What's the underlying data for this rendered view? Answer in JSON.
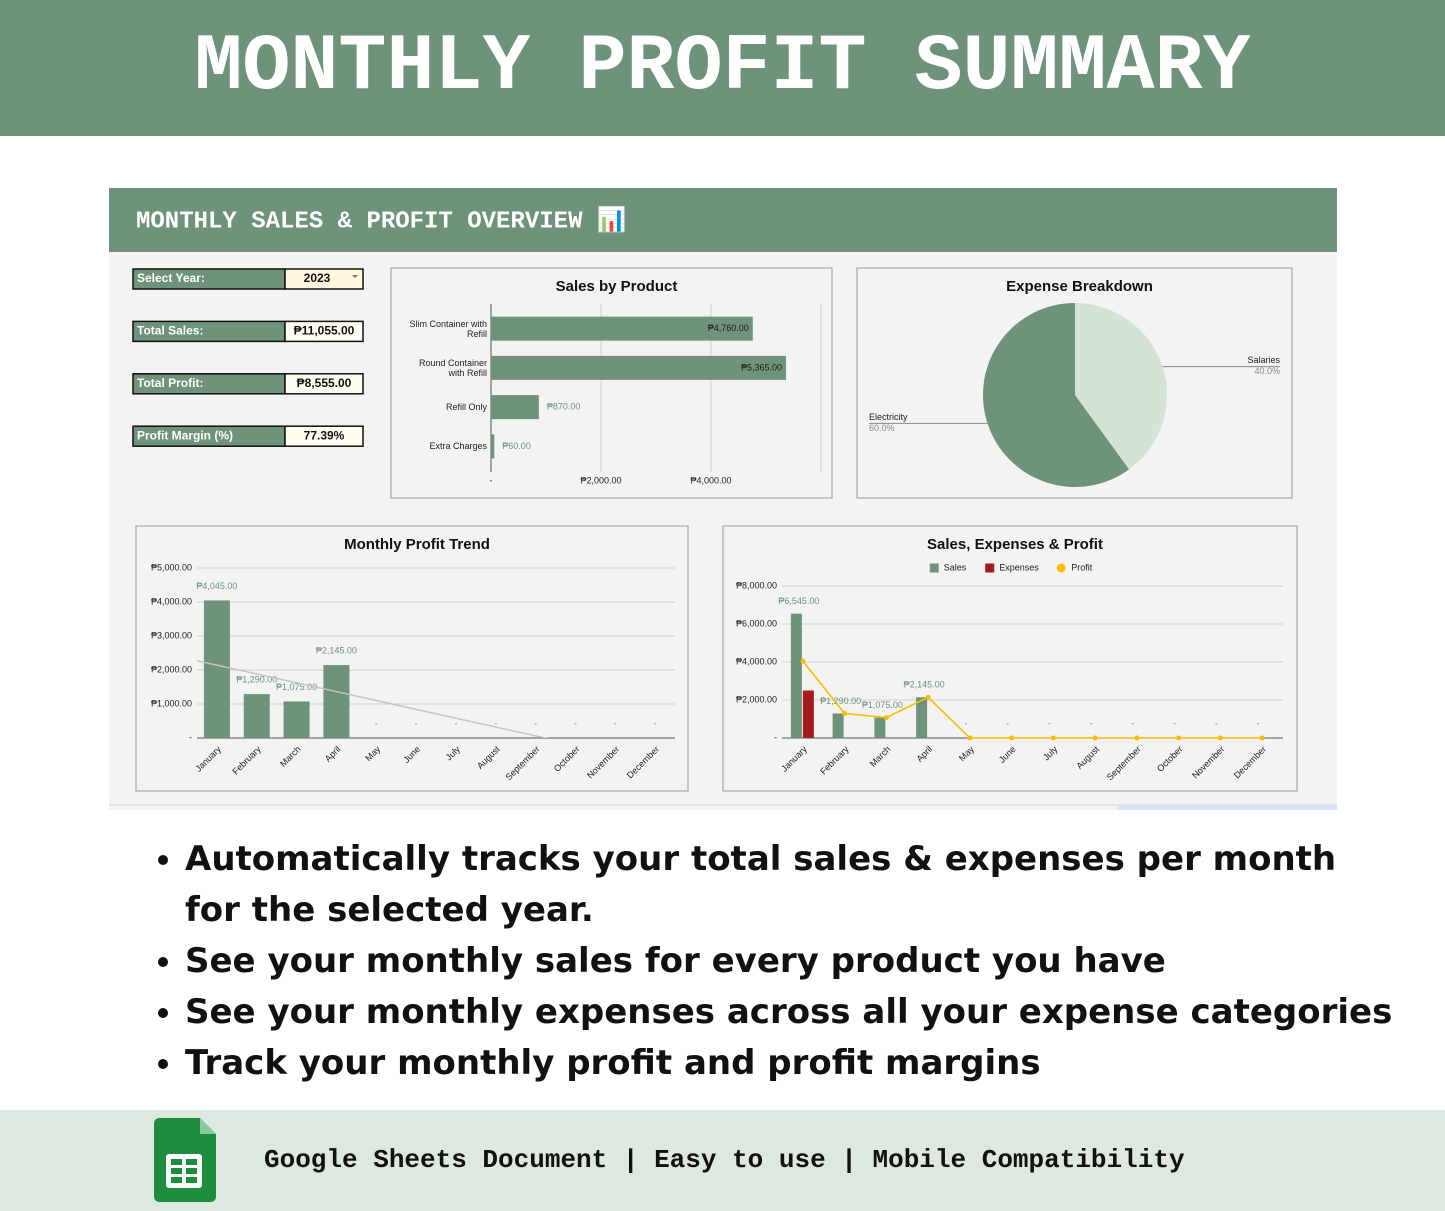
{
  "header": {
    "title": "MONTHLY PROFIT SUMMARY"
  },
  "dashboard": {
    "title": "MONTHLY SALES & PROFIT OVERVIEW 📊",
    "fields": [
      {
        "label": "Select Year:",
        "value": "2023"
      },
      {
        "label": "Total Sales:",
        "value": "₱11,055.00"
      },
      {
        "label": "Total Profit:",
        "value": "₱8,555.00"
      },
      {
        "label": "Profit Margin (%)",
        "value": "77.39%"
      }
    ]
  },
  "chart_data": [
    {
      "type": "bar",
      "horizontal": true,
      "title": "Sales by Product",
      "categories": [
        "Slim Container with Refill",
        "Round Container with Refill",
        "Refill Only",
        "Extra Charges"
      ],
      "values": [
        4760,
        5365,
        870,
        60
      ],
      "value_labels": [
        "₱4,760.00",
        "₱5,365.00",
        "₱870.00",
        "₱60.00"
      ],
      "color": "#6e937a",
      "xlim": [
        0,
        6000
      ],
      "xticks": [
        {
          "value": 0,
          "label": "-"
        },
        {
          "value": 2000,
          "label": "₱2,000.00"
        },
        {
          "value": 4000,
          "label": "₱4,000.00"
        }
      ],
      "grid": true
    },
    {
      "type": "pie",
      "title": "Expense Breakdown",
      "categories": [
        "Salaries",
        "Electricity"
      ],
      "values": [
        40,
        60
      ],
      "value_labels": [
        "40.0%",
        "60.0%"
      ],
      "colors": [
        "#d4e3d6",
        "#6e937a"
      ]
    },
    {
      "type": "bar",
      "title": "Monthly Profit Trend",
      "categories": [
        "January",
        "February",
        "March",
        "April",
        "May",
        "June",
        "July",
        "August",
        "September",
        "October",
        "November",
        "December"
      ],
      "values": [
        4045,
        1290,
        1075,
        2145,
        0,
        0,
        0,
        0,
        0,
        0,
        0,
        0
      ],
      "value_labels": [
        "₱4,045.00",
        "₱1,290.00",
        "₱1,075.00",
        "₱2,145.00",
        "-",
        "-",
        "-",
        "-",
        "-",
        "-",
        "-",
        "-"
      ],
      "color": "#6e937a",
      "ylim": [
        0,
        5000
      ],
      "yticks": [
        {
          "value": 0,
          "label": "-"
        },
        {
          "value": 1000,
          "label": "₱1,000.00"
        },
        {
          "value": 2000,
          "label": "₱2,000.00"
        },
        {
          "value": 3000,
          "label": "₱3,000.00"
        },
        {
          "value": 4000,
          "label": "₱4,000.00"
        },
        {
          "value": 5000,
          "label": "₱5,000.00"
        }
      ],
      "grid": true,
      "trendline": true
    },
    {
      "type": "combo",
      "title": "Sales, Expenses & Profit",
      "categories": [
        "January",
        "February",
        "March",
        "April",
        "May",
        "June",
        "July",
        "August",
        "September",
        "October",
        "November",
        "December"
      ],
      "series": [
        {
          "name": "Sales",
          "kind": "bar",
          "color": "#6e937a",
          "values": [
            6545,
            1290,
            1075,
            2145,
            0,
            0,
            0,
            0,
            0,
            0,
            0,
            0
          ],
          "value_labels": [
            "₱6,545.00",
            "₱1,290.00",
            "₱1,075.00",
            "₱2,145.00",
            "-",
            "-",
            "-",
            "-",
            "-",
            "-",
            "-",
            "-"
          ]
        },
        {
          "name": "Expenses",
          "kind": "bar",
          "color": "#a61c1c",
          "values": [
            2500,
            0,
            0,
            0,
            0,
            0,
            0,
            0,
            0,
            0,
            0,
            0
          ]
        },
        {
          "name": "Profit",
          "kind": "line",
          "color": "#fbbc04",
          "values": [
            4045,
            1290,
            1075,
            2145,
            0,
            0,
            0,
            0,
            0,
            0,
            0,
            0
          ]
        }
      ],
      "ylim": [
        0,
        8000
      ],
      "yticks": [
        {
          "value": 0,
          "label": "-"
        },
        {
          "value": 2000,
          "label": "₱2,000.00"
        },
        {
          "value": 4000,
          "label": "₱4,000.00"
        },
        {
          "value": 6000,
          "label": "₱6,000.00"
        },
        {
          "value": 8000,
          "label": "₱8,000.00"
        }
      ],
      "grid": true,
      "legend": "top"
    }
  ],
  "bullets": [
    "Automatically tracks your total sales  & expenses per month for the selected year.",
    "See your monthly sales for every product you have",
    "See your monthly expenses across all your expense categories",
    "Track your monthly profit and profit margins"
  ],
  "footer": {
    "text": "Google Sheets Document | Easy to use | Mobile Compatibility"
  }
}
